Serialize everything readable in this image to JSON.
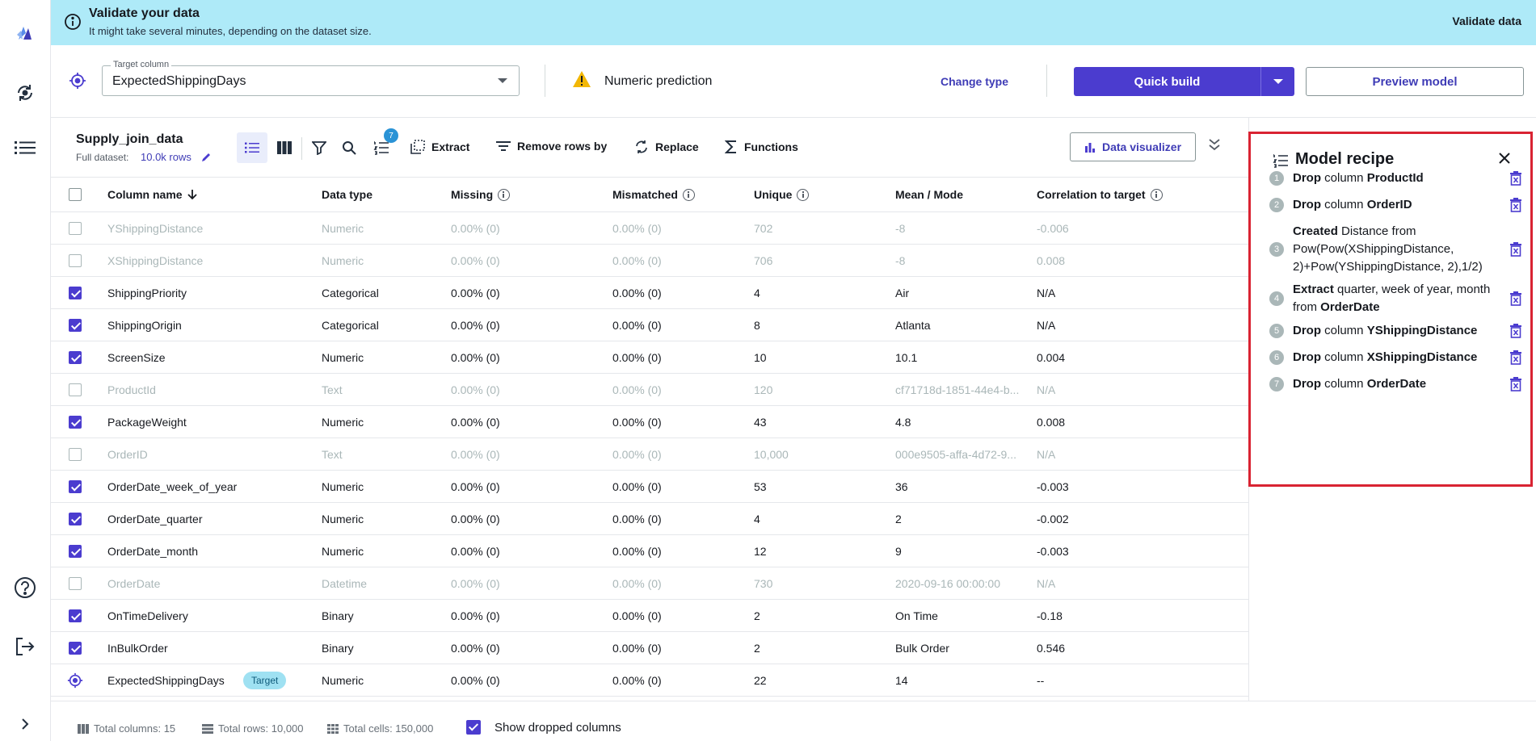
{
  "banner": {
    "title": "Validate your data",
    "subtitle": "It might take several minutes, depending on the dataset size.",
    "action": "Validate data",
    "color": "#aeeaf8"
  },
  "rail": {
    "icons": [
      "canvas-logo-icon",
      "model-refresh-icon",
      "list-icon",
      "help-icon",
      "sign-out-icon",
      "expand-chevron-icon"
    ]
  },
  "target": {
    "label": "Target column",
    "value": "ExpectedShippingDays",
    "prediction_type": "Numeric prediction",
    "change_type": "Change type",
    "quick_build": "Quick build",
    "preview_model": "Preview model",
    "accent": "#4b3ccf"
  },
  "dataset": {
    "name": "Supply_join_data",
    "full_label": "Full dataset:",
    "rows": "10.0k rows",
    "badge_count": "7"
  },
  "toolbar": {
    "extract": "Extract",
    "remove_rows": "Remove rows by",
    "replace": "Replace",
    "functions": "Functions",
    "data_visualizer": "Data visualizer"
  },
  "table": {
    "headers": {
      "column_name": "Column name",
      "data_type": "Data type",
      "missing": "Missing",
      "mismatched": "Mismatched",
      "unique": "Unique",
      "mean_mode": "Mean / Mode",
      "correlation": "Correlation to target"
    },
    "rows": [
      {
        "name": "YShippingDistance",
        "type": "Numeric",
        "missing": "0.00% (0)",
        "mismatched": "0.00% (0)",
        "unique": "702",
        "mean": "-8",
        "corr": "-0.006",
        "checked": false,
        "dim": true
      },
      {
        "name": "XShippingDistance",
        "type": "Numeric",
        "missing": "0.00% (0)",
        "mismatched": "0.00% (0)",
        "unique": "706",
        "mean": "-8",
        "corr": "0.008",
        "checked": false,
        "dim": true
      },
      {
        "name": "ShippingPriority",
        "type": "Categorical",
        "missing": "0.00% (0)",
        "mismatched": "0.00% (0)",
        "unique": "4",
        "mean": "Air",
        "corr": "N/A",
        "checked": true,
        "dim": false
      },
      {
        "name": "ShippingOrigin",
        "type": "Categorical",
        "missing": "0.00% (0)",
        "mismatched": "0.00% (0)",
        "unique": "8",
        "mean": "Atlanta",
        "corr": "N/A",
        "checked": true,
        "dim": false
      },
      {
        "name": "ScreenSize",
        "type": "Numeric",
        "missing": "0.00% (0)",
        "mismatched": "0.00% (0)",
        "unique": "10",
        "mean": "10.1",
        "corr": "0.004",
        "checked": true,
        "dim": false
      },
      {
        "name": "ProductId",
        "type": "Text",
        "missing": "0.00% (0)",
        "mismatched": "0.00% (0)",
        "unique": "120",
        "mean": "cf71718d-1851-44e4-b...",
        "corr": "N/A",
        "checked": false,
        "dim": true
      },
      {
        "name": "PackageWeight",
        "type": "Numeric",
        "missing": "0.00% (0)",
        "mismatched": "0.00% (0)",
        "unique": "43",
        "mean": "4.8",
        "corr": "0.008",
        "checked": true,
        "dim": false
      },
      {
        "name": "OrderID",
        "type": "Text",
        "missing": "0.00% (0)",
        "mismatched": "0.00% (0)",
        "unique": "10,000",
        "mean": "000e9505-affa-4d72-9...",
        "corr": "N/A",
        "checked": false,
        "dim": true
      },
      {
        "name": "OrderDate_week_of_year",
        "type": "Numeric",
        "missing": "0.00% (0)",
        "mismatched": "0.00% (0)",
        "unique": "53",
        "mean": "36",
        "corr": "-0.003",
        "checked": true,
        "dim": false
      },
      {
        "name": "OrderDate_quarter",
        "type": "Numeric",
        "missing": "0.00% (0)",
        "mismatched": "0.00% (0)",
        "unique": "4",
        "mean": "2",
        "corr": "-0.002",
        "checked": true,
        "dim": false
      },
      {
        "name": "OrderDate_month",
        "type": "Numeric",
        "missing": "0.00% (0)",
        "mismatched": "0.00% (0)",
        "unique": "12",
        "mean": "9",
        "corr": "-0.003",
        "checked": true,
        "dim": false
      },
      {
        "name": "OrderDate",
        "type": "Datetime",
        "missing": "0.00% (0)",
        "mismatched": "0.00% (0)",
        "unique": "730",
        "mean": "2020-09-16 00:00:00",
        "corr": "N/A",
        "checked": false,
        "dim": true
      },
      {
        "name": "OnTimeDelivery",
        "type": "Binary",
        "missing": "0.00% (0)",
        "mismatched": "0.00% (0)",
        "unique": "2",
        "mean": "On Time",
        "corr": "-0.18",
        "checked": true,
        "dim": false
      },
      {
        "name": "InBulkOrder",
        "type": "Binary",
        "missing": "0.00% (0)",
        "mismatched": "0.00% (0)",
        "unique": "2",
        "mean": "Bulk Order",
        "corr": "0.546",
        "checked": true,
        "dim": false
      },
      {
        "name": "ExpectedShippingDays",
        "type": "Numeric",
        "missing": "0.00% (0)",
        "mismatched": "0.00% (0)",
        "unique": "22",
        "mean": "14",
        "corr": "--",
        "checked": false,
        "dim": false,
        "target": true,
        "tag": "Target"
      }
    ]
  },
  "footer": {
    "total_columns": "Total columns: 15",
    "total_rows": "Total rows: 10,000",
    "total_cells": "Total cells: 150,000",
    "show_dropped": "Show dropped columns",
    "show_dropped_checked": true
  },
  "recipe": {
    "title": "Model recipe",
    "border_color": "#d92332",
    "steps": [
      {
        "num": "1",
        "parts": [
          {
            "b": "Drop"
          },
          {
            "t": " column "
          },
          {
            "b": "ProductId"
          }
        ]
      },
      {
        "num": "2",
        "parts": [
          {
            "b": "Drop"
          },
          {
            "t": " column "
          },
          {
            "b": "OrderID"
          }
        ]
      },
      {
        "num": "3",
        "parts": [
          {
            "b": "Created"
          },
          {
            "t": " Distance from Pow(Pow(XShippingDistance, 2)+Pow(YShippingDistance, 2),1/2)"
          }
        ]
      },
      {
        "num": "4",
        "parts": [
          {
            "b": "Extract"
          },
          {
            "t": " quarter, week of year, month from "
          },
          {
            "b": "OrderDate"
          }
        ]
      },
      {
        "num": "5",
        "parts": [
          {
            "b": "Drop"
          },
          {
            "t": " column "
          },
          {
            "b": "YShippingDistance"
          }
        ]
      },
      {
        "num": "6",
        "parts": [
          {
            "b": "Drop"
          },
          {
            "t": " column "
          },
          {
            "b": "XShippingDistance"
          }
        ]
      },
      {
        "num": "7",
        "parts": [
          {
            "b": "Drop"
          },
          {
            "t": " column "
          },
          {
            "b": "OrderDate"
          }
        ]
      }
    ]
  }
}
